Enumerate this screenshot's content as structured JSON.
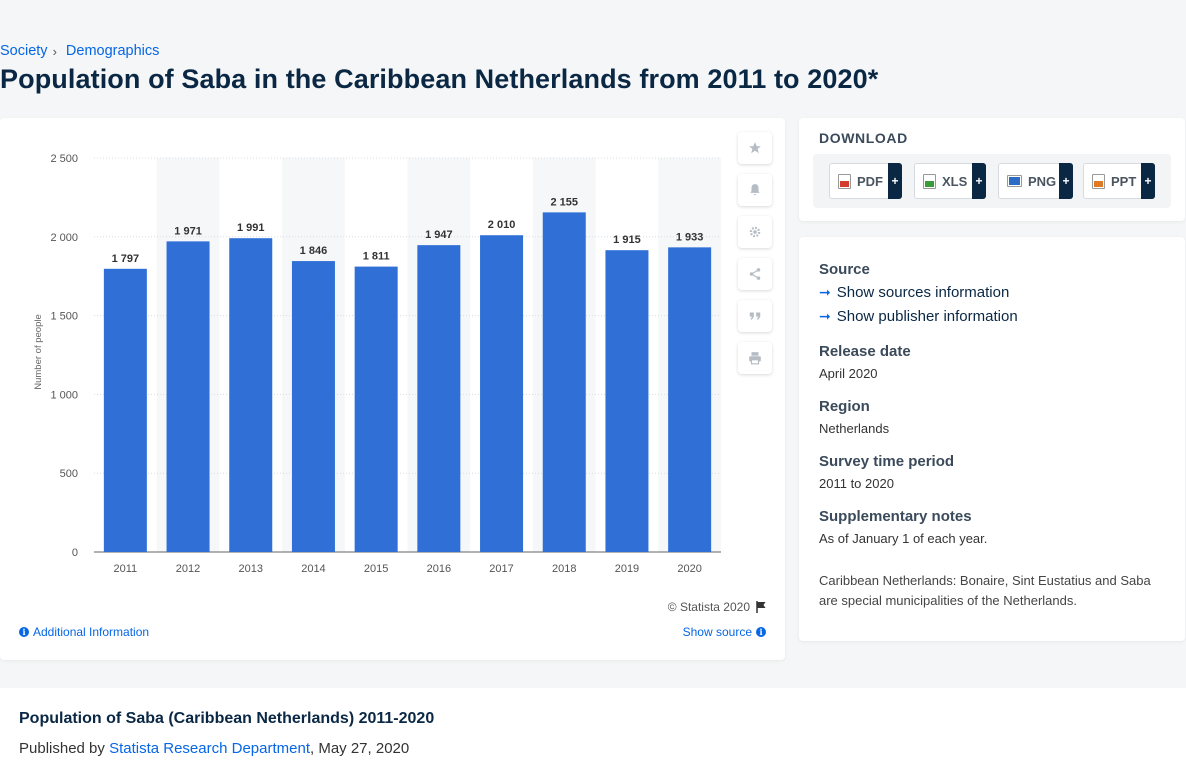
{
  "breadcrumb": {
    "items": [
      "Society",
      "Demographics"
    ],
    "separator": "›"
  },
  "page_title": "Population of Saba in the Caribbean Netherlands from 2011 to 2020*",
  "chart_data": {
    "type": "bar",
    "categories": [
      "2011",
      "2012",
      "2013",
      "2014",
      "2015",
      "2016",
      "2017",
      "2018",
      "2019",
      "2020"
    ],
    "values": [
      1797,
      1971,
      1991,
      1846,
      1811,
      1947,
      2010,
      2155,
      1915,
      1933
    ],
    "data_labels": [
      "1 797",
      "1 971",
      "1 991",
      "1 846",
      "1 811",
      "1 947",
      "2 010",
      "2 155",
      "1 915",
      "1 933"
    ],
    "y_ticks": [
      0,
      500,
      1000,
      1500,
      2000,
      2500
    ],
    "y_tick_labels": [
      "0",
      "500",
      "1 000",
      "1 500",
      "2 000",
      "2 500"
    ],
    "ylim": [
      0,
      2500
    ],
    "ylabel": "Number of people",
    "xlabel": "",
    "bar_color": "#2f6fd6",
    "grid": true
  },
  "chart_footer": {
    "copyright": "© Statista 2020",
    "additional_info": "Additional Information",
    "show_source": "Show source"
  },
  "tools": [
    "star-icon",
    "bell-icon",
    "gear-icon",
    "share-icon",
    "quote-icon",
    "print-icon"
  ],
  "download": {
    "title": "DOWNLOAD",
    "formats": [
      {
        "label": "PDF",
        "color": "#d23b2e"
      },
      {
        "label": "XLS",
        "color": "#3a9b3a"
      },
      {
        "label": "PNG",
        "color": "#2d6cc4"
      },
      {
        "label": "PPT",
        "color": "#e07a22"
      }
    ],
    "plus": "+"
  },
  "info": {
    "source_heading": "Source",
    "show_sources": "Show sources information",
    "show_publisher": "Show publisher information",
    "release_heading": "Release date",
    "release_value": "April 2020",
    "region_heading": "Region",
    "region_value": "Netherlands",
    "survey_heading": "Survey time period",
    "survey_value": "2011 to 2020",
    "notes_heading": "Supplementary notes",
    "notes_1": "As of January 1 of each year.",
    "notes_2": "Caribbean Netherlands: Bonaire, Sint Eustatius and Saba are special municipalities of the Netherlands."
  },
  "publication": {
    "title": "Population of Saba (Caribbean Netherlands) 2011-2020",
    "published_by": "Published by",
    "publisher": "Statista Research Department",
    "date": ", May 27, 2020"
  }
}
